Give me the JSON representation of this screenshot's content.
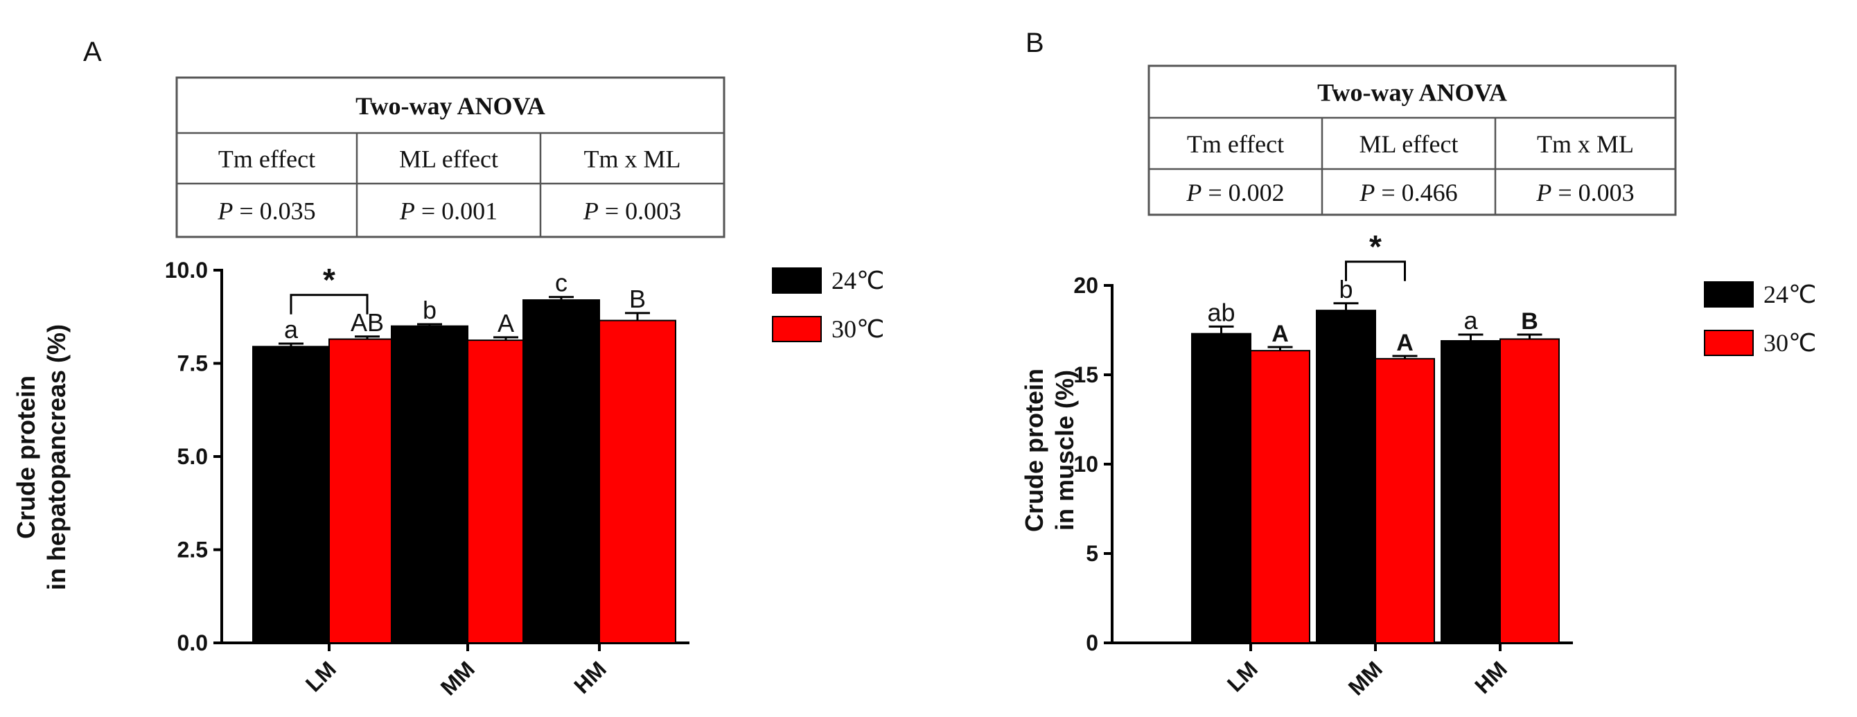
{
  "chart_data": [
    {
      "type": "bar",
      "panel": "A",
      "categories": [
        "LM",
        "MM",
        "HM"
      ],
      "series": [
        {
          "name": "24℃",
          "color": "#000000",
          "values": [
            7.95,
            8.5,
            9.2
          ],
          "errors": [
            0.08,
            0.05,
            0.08
          ],
          "letters": [
            "a",
            "b",
            "c"
          ]
        },
        {
          "name": "30℃",
          "color": "#ff0000",
          "values": [
            8.15,
            8.12,
            8.65
          ],
          "errors": [
            0.07,
            0.08,
            0.2
          ],
          "letters": [
            "AB",
            "A",
            "B"
          ]
        }
      ],
      "letter_style": "normal",
      "ylabel_lines": [
        "Crude protein",
        "in hepatopancreas (%)"
      ],
      "ylim": [
        0,
        10
      ],
      "yticks": [
        "0.0",
        "2.5",
        "5.0",
        "7.5",
        "10.0"
      ],
      "ytick_values": [
        0,
        2.5,
        5,
        7.5,
        10
      ],
      "significance": {
        "category": "LM",
        "symbol": "*"
      },
      "anova": {
        "title": "Two-way ANOVA",
        "headers": [
          "Tm effect",
          "ML effect",
          "Tm x ML"
        ],
        "p_label": "P",
        "p_values": [
          "= 0.035",
          "= 0.001",
          "= 0.003"
        ]
      }
    },
    {
      "type": "bar",
      "panel": "B",
      "categories": [
        "LM",
        "MM",
        "HM"
      ],
      "series": [
        {
          "name": "24℃",
          "color": "#000000",
          "values": [
            17.3,
            18.6,
            16.9
          ],
          "errors": [
            0.4,
            0.4,
            0.35
          ],
          "letters": [
            "ab",
            "b",
            "a"
          ]
        },
        {
          "name": "30℃",
          "color": "#ff0000",
          "values": [
            16.35,
            15.9,
            17.0
          ],
          "errors": [
            0.2,
            0.15,
            0.25
          ],
          "letters": [
            "A",
            "A",
            "B"
          ]
        }
      ],
      "letter_style": "bold-second",
      "ylabel_lines": [
        "Crude protein",
        "in muscle (%)"
      ],
      "ylim": [
        0,
        20
      ],
      "yticks": [
        "0",
        "5",
        "10",
        "15",
        "20"
      ],
      "ytick_values": [
        0,
        5,
        10,
        15,
        20
      ],
      "significance": {
        "category": "MM",
        "symbol": "*"
      },
      "anova": {
        "title": "Two-way ANOVA",
        "headers": [
          "Tm effect",
          "ML effect",
          "Tm x ML"
        ],
        "p_label": "P",
        "p_values": [
          "= 0.002",
          "= 0.466",
          "= 0.003"
        ]
      }
    }
  ]
}
